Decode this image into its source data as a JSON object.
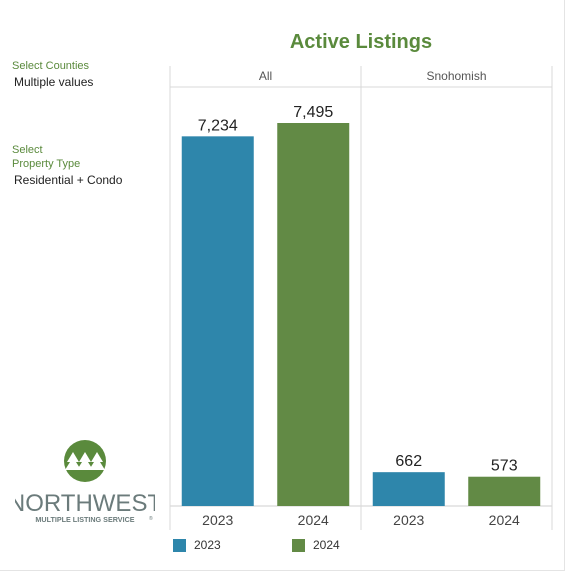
{
  "filters": {
    "counties": {
      "label": "Select Counties",
      "value": "Multiple values"
    },
    "property_type": {
      "label_line1": "Select",
      "label_line2": "Property Type",
      "value": "Residential + Condo"
    }
  },
  "logo": {
    "name": "NORTHWEST",
    "tagline": "MULTIPLE LISTING SERVICE",
    "mark": "®",
    "color": "#6b7b7b",
    "circle_color": "#5a8a3c"
  },
  "colors": {
    "2023": "#2e86ab",
    "2024": "#628a45"
  },
  "chart_data": {
    "type": "bar",
    "title": "Active Listings",
    "xlabel": "",
    "ylabel": "",
    "ylim": [
      0,
      7495
    ],
    "grid": false,
    "legend_position": "bottom-left",
    "panels": [
      {
        "name": "All",
        "categories": [
          "2023",
          "2024"
        ],
        "values": [
          7234,
          7495
        ],
        "labels": [
          "7,234",
          "7,495"
        ]
      },
      {
        "name": "Snohomish",
        "categories": [
          "2023",
          "2024"
        ],
        "values": [
          662,
          573
        ],
        "labels": [
          "662",
          "573"
        ]
      }
    ],
    "series": [
      {
        "name": "2023",
        "color": "#2e86ab"
      },
      {
        "name": "2024",
        "color": "#628a45"
      }
    ]
  }
}
